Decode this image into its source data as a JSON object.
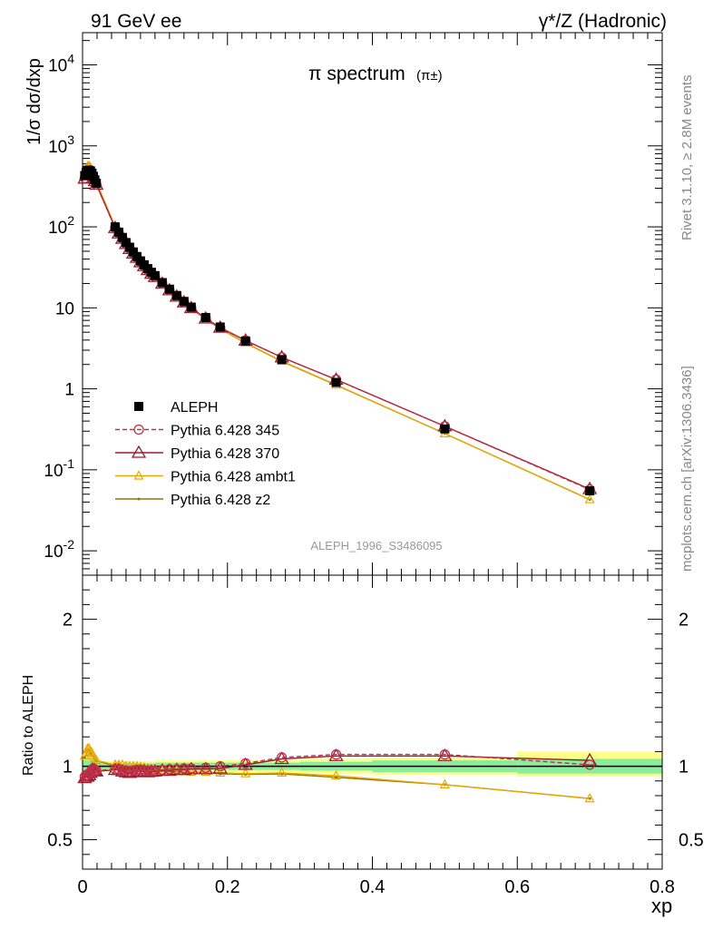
{
  "header": {
    "left": "91 GeV ee",
    "right": "γ*/Z (Hadronic)"
  },
  "side_text": {
    "top": "Rivet 3.1.10, ≥ 2.8M events",
    "bottom": "mcplots.cern.ch [arXiv:1306.3436]"
  },
  "colors": {
    "data": "#000000",
    "p345": "#c0304a",
    "p370": "#9b1b30",
    "ambt1": "#e8a800",
    "z2": "#8a7a00",
    "band_inner": "#88ee99",
    "band_outer": "#ffff88"
  },
  "chart_data": [
    {
      "type": "line",
      "title": "π spectrum",
      "title_sub": "(π±)",
      "ylabel": "1/σ dσ/dxp",
      "xlabel": "",
      "yscale": "log",
      "xlim": [
        0,
        0.8
      ],
      "ylim": [
        0.005,
        25000
      ],
      "y_ticks": [
        "10^-2",
        "10^-1",
        "1",
        "10",
        "10^2",
        "10^3",
        "10^4"
      ],
      "watermark": "ALEPH_1996_S3486095",
      "legend_position": "middle-left",
      "legend": [
        "ALEPH",
        "Pythia 6.428 345",
        "Pythia 6.428 370",
        "Pythia 6.428 ambt1",
        "Pythia 6.428 z2"
      ],
      "x": [
        0.003,
        0.005,
        0.007,
        0.009,
        0.011,
        0.013,
        0.015,
        0.017,
        0.019,
        0.045,
        0.05,
        0.055,
        0.06,
        0.065,
        0.07,
        0.075,
        0.08,
        0.085,
        0.09,
        0.095,
        0.1,
        0.11,
        0.12,
        0.13,
        0.14,
        0.15,
        0.17,
        0.19,
        0.225,
        0.275,
        0.35,
        0.5,
        0.7
      ],
      "series": [
        {
          "name": "ALEPH",
          "values": [
            430,
            470,
            500,
            500,
            490,
            460,
            420,
            380,
            345,
            100,
            86,
            74,
            64,
            56,
            49,
            43,
            38,
            34,
            30.5,
            27.5,
            25,
            20.5,
            17,
            14.2,
            12,
            10.2,
            7.6,
            5.8,
            3.9,
            2.3,
            1.2,
            0.32,
            0.055
          ]
        },
        {
          "name": "Pythia 6.428 345",
          "values": [
            400,
            440,
            470,
            475,
            470,
            450,
            410,
            370,
            335,
            98,
            84,
            72,
            62,
            54,
            47.5,
            42,
            37,
            33,
            29.5,
            26.7,
            24.3,
            20,
            16.6,
            13.9,
            11.8,
            10,
            7.4,
            5.7,
            3.95,
            2.45,
            1.3,
            0.345,
            0.057
          ]
        },
        {
          "name": "Pythia 6.428 370",
          "values": [
            395,
            435,
            465,
            470,
            468,
            448,
            408,
            368,
            333,
            97,
            83,
            71.5,
            61.5,
            53.5,
            47,
            41.5,
            36.7,
            32.8,
            29.3,
            26.5,
            24.1,
            19.9,
            16.5,
            13.8,
            11.7,
            9.95,
            7.4,
            5.7,
            3.95,
            2.45,
            1.3,
            0.345,
            0.058
          ]
        },
        {
          "name": "Pythia 6.428 ambt1",
          "values": [
            460,
            510,
            560,
            560,
            540,
            500,
            450,
            400,
            360,
            101,
            87,
            75,
            64,
            56,
            49,
            43,
            38,
            33.5,
            30,
            27,
            24.4,
            20,
            16.5,
            13.8,
            11.6,
            9.8,
            7.3,
            5.55,
            3.7,
            2.2,
            1.12,
            0.28,
            0.043
          ]
        },
        {
          "name": "Pythia 6.428 z2",
          "values": [
            455,
            505,
            555,
            555,
            535,
            495,
            447,
            398,
            358,
            100,
            86,
            74.5,
            63.5,
            55.5,
            48.5,
            42.5,
            37.5,
            33.2,
            29.8,
            26.8,
            24.2,
            19.9,
            16.4,
            13.7,
            11.5,
            9.75,
            7.25,
            5.5,
            3.68,
            2.18,
            1.11,
            0.28,
            0.043
          ]
        }
      ]
    },
    {
      "type": "line",
      "title": "",
      "ylabel": "Ratio to ALEPH",
      "xlabel": "xp",
      "xlim": [
        0,
        0.8
      ],
      "ylim": [
        0.3,
        2.3
      ],
      "y_ticks": [
        "0.5",
        "1",
        "2"
      ],
      "x_ticks": [
        "0",
        "0.2",
        "0.4",
        "0.6",
        "0.8"
      ],
      "x": [
        0.003,
        0.005,
        0.007,
        0.009,
        0.011,
        0.013,
        0.015,
        0.017,
        0.019,
        0.045,
        0.05,
        0.055,
        0.06,
        0.065,
        0.07,
        0.075,
        0.08,
        0.085,
        0.09,
        0.095,
        0.1,
        0.11,
        0.12,
        0.13,
        0.14,
        0.15,
        0.17,
        0.19,
        0.225,
        0.275,
        0.35,
        0.5,
        0.7
      ],
      "series": [
        {
          "name": "Pythia 6.428 345",
          "values": [
            0.93,
            0.94,
            0.94,
            0.95,
            0.96,
            0.98,
            0.98,
            0.97,
            0.97,
            0.98,
            0.98,
            0.97,
            0.97,
            0.965,
            0.97,
            0.975,
            0.975,
            0.97,
            0.97,
            0.97,
            0.97,
            0.975,
            0.98,
            0.98,
            0.985,
            0.985,
            0.99,
            1.0,
            1.02,
            1.06,
            1.08,
            1.08,
            1.01
          ]
        },
        {
          "name": "Pythia 6.428 370",
          "values": [
            0.92,
            0.93,
            0.93,
            0.94,
            0.955,
            0.975,
            0.975,
            0.97,
            0.965,
            0.975,
            0.975,
            0.965,
            0.96,
            0.955,
            0.96,
            0.965,
            0.965,
            0.965,
            0.96,
            0.963,
            0.965,
            0.97,
            0.97,
            0.975,
            0.975,
            0.98,
            0.98,
            0.985,
            1.01,
            1.05,
            1.07,
            1.07,
            1.04
          ]
        },
        {
          "name": "Pythia 6.428 ambt1",
          "values": [
            1.07,
            1.09,
            1.12,
            1.12,
            1.1,
            1.09,
            1.07,
            1.05,
            1.04,
            1.01,
            1.01,
            1.01,
            1.0,
            1.0,
            1.0,
            1.0,
            0.995,
            0.99,
            0.985,
            0.98,
            0.975,
            0.975,
            0.97,
            0.97,
            0.965,
            0.96,
            0.96,
            0.955,
            0.95,
            0.955,
            0.935,
            0.875,
            0.78
          ]
        },
        {
          "name": "Pythia 6.428 z2",
          "values": [
            1.06,
            1.075,
            1.11,
            1.11,
            1.09,
            1.08,
            1.065,
            1.048,
            1.038,
            1.0,
            1.0,
            1.005,
            0.995,
            0.99,
            0.99,
            0.99,
            0.987,
            0.977,
            0.977,
            0.975,
            0.968,
            0.97,
            0.965,
            0.965,
            0.958,
            0.955,
            0.955,
            0.948,
            0.945,
            0.948,
            0.925,
            0.875,
            0.78
          ]
        }
      ],
      "band_edges": [
        0.0,
        0.02,
        0.04,
        0.1,
        0.2,
        0.3,
        0.4,
        0.6,
        0.8
      ],
      "band_inner": [
        [
          0.96,
          1.04
        ],
        [
          0.98,
          1.02
        ],
        [
          0.98,
          1.02
        ],
        [
          0.975,
          1.025
        ],
        [
          0.975,
          1.025
        ],
        [
          0.97,
          1.03
        ],
        [
          0.96,
          1.04
        ],
        [
          0.95,
          1.05
        ]
      ],
      "band_outer": [
        [
          0.94,
          1.06
        ],
        [
          0.965,
          1.035
        ],
        [
          0.965,
          1.035
        ],
        [
          0.96,
          1.04
        ],
        [
          0.96,
          1.04
        ],
        [
          0.95,
          1.05
        ],
        [
          0.94,
          1.06
        ],
        [
          0.93,
          1.1
        ]
      ]
    }
  ]
}
